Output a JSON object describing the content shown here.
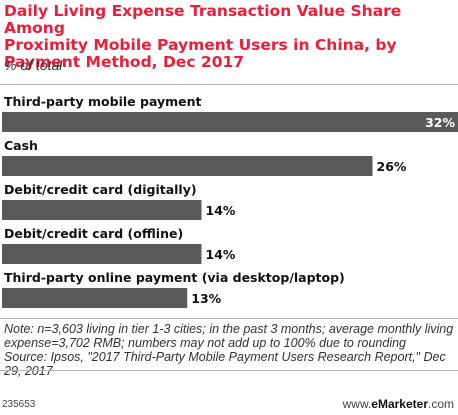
{
  "chart_data": {
    "type": "bar",
    "title": "Daily Living Expense Transaction Value Share Among\nProximity Mobile Payment Users in China, by\nPayment Method, Dec 2017",
    "subtitle": "% of total",
    "categories": [
      "Third-party mobile payment",
      "Cash",
      "Debit/credit card (digitally)",
      "Debit/credit card (offline)",
      "Third-party online payment (via desktop/laptop)"
    ],
    "values": [
      32,
      26,
      14,
      14,
      13
    ],
    "value_labels": [
      "32%",
      "26%",
      "14%",
      "14%",
      "13%"
    ],
    "xlabel": "",
    "ylabel": "",
    "xlim": [
      0,
      32
    ],
    "grid": false,
    "bar_color": "#5a5a5a"
  },
  "note": "Note: n=3,603 living in tier 1-3 cities; in the past 3 months; average monthly living expense=3,702 RMB; numbers may not add up to 100% due to rounding",
  "source": "Source: Ipsos, \"2017 Third-Party Mobile Payment Users Research Report,\" Dec 29, 2017",
  "footer": {
    "code": "235653",
    "brand_prefix": "www.",
    "brand_name": "eMarketer",
    "brand_suffix": ".com"
  },
  "colors": {
    "title": "#ea1f3b",
    "bar": "#5a5a5a"
  }
}
